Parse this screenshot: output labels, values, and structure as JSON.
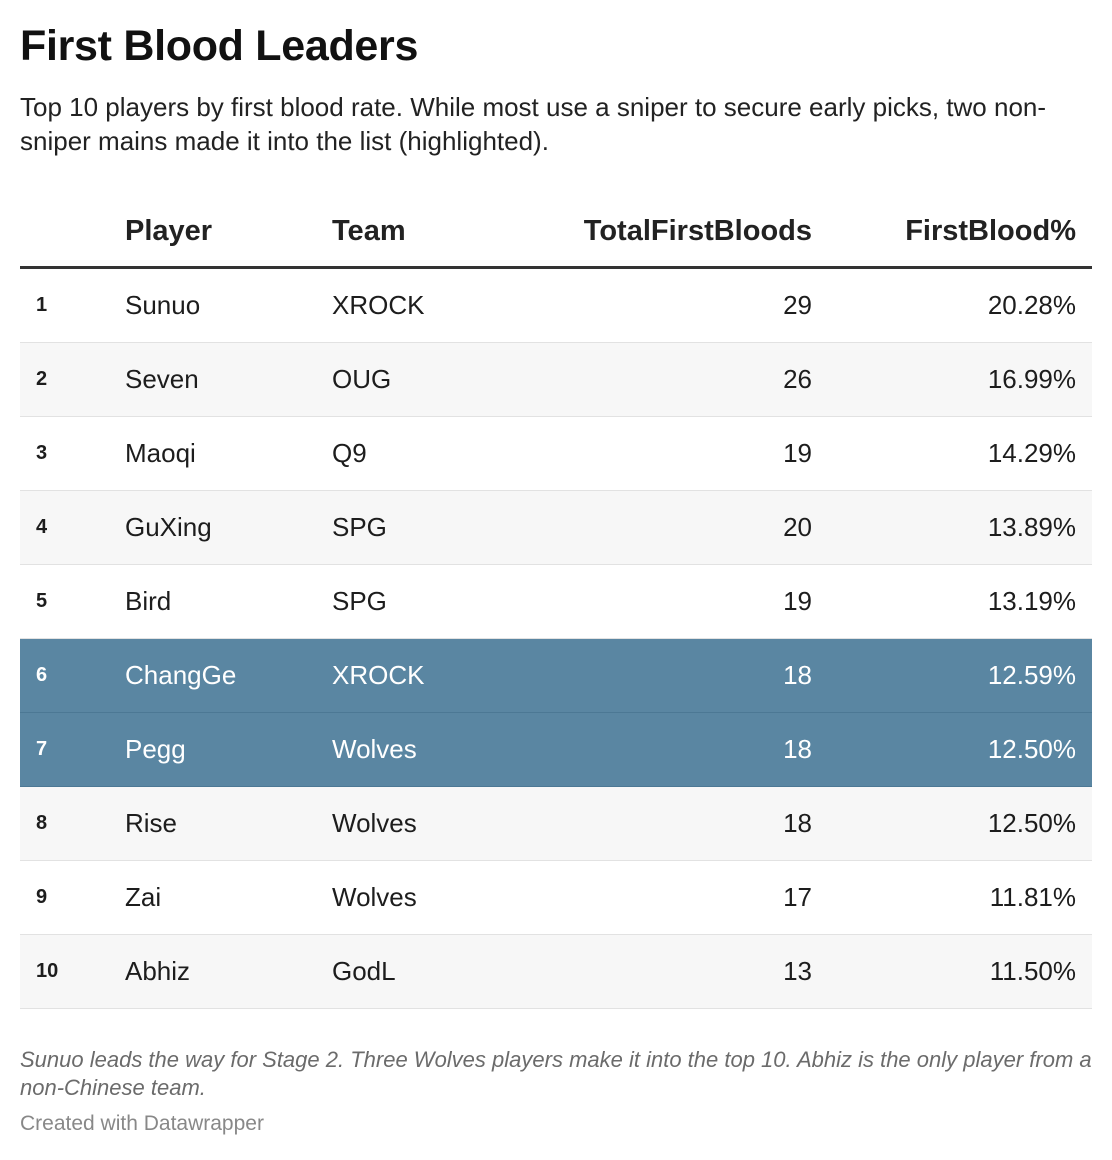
{
  "title": "First Blood Leaders",
  "subtitle": "Top 10 players by first blood rate. While most use a sniper to secure early picks, two non-sniper mains made it into the list (highlighted).",
  "notes": "Sunuo leads the way for Stage 2. Three Wolves players make it into the top 10. Abhiz is the only player from a non-Chinese team.",
  "credit": "Created with Datawrapper",
  "colors": {
    "highlight": "#5a86a2",
    "stripe": "#f7f7f7",
    "header_rule": "#333333"
  },
  "chart_data": {
    "type": "table",
    "columns": [
      "",
      "Player",
      "Team",
      "TotalFirstBloods",
      "FirstBlood%"
    ],
    "rows": [
      {
        "rank": "1",
        "player": "Sunuo",
        "team": "XROCK",
        "total": "29",
        "rate": "20.28%",
        "highlighted": false
      },
      {
        "rank": "2",
        "player": "Seven",
        "team": "OUG",
        "total": "26",
        "rate": "16.99%",
        "highlighted": false
      },
      {
        "rank": "3",
        "player": "Maoqi",
        "team": "Q9",
        "total": "19",
        "rate": "14.29%",
        "highlighted": false
      },
      {
        "rank": "4",
        "player": "GuXing",
        "team": "SPG",
        "total": "20",
        "rate": "13.89%",
        "highlighted": false
      },
      {
        "rank": "5",
        "player": "Bird",
        "team": "SPG",
        "total": "19",
        "rate": "13.19%",
        "highlighted": false
      },
      {
        "rank": "6",
        "player": "ChangGe",
        "team": "XROCK",
        "total": "18",
        "rate": "12.59%",
        "highlighted": true
      },
      {
        "rank": "7",
        "player": "Pegg",
        "team": "Wolves",
        "total": "18",
        "rate": "12.50%",
        "highlighted": true
      },
      {
        "rank": "8",
        "player": "Rise",
        "team": "Wolves",
        "total": "18",
        "rate": "12.50%",
        "highlighted": false
      },
      {
        "rank": "9",
        "player": "Zai",
        "team": "Wolves",
        "total": "17",
        "rate": "11.81%",
        "highlighted": false
      },
      {
        "rank": "10",
        "player": "Abhiz",
        "team": "GodL",
        "total": "13",
        "rate": "11.50%",
        "highlighted": false
      }
    ]
  }
}
